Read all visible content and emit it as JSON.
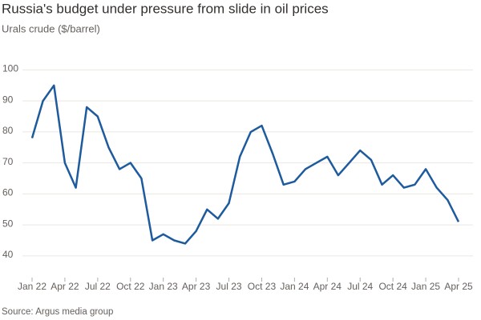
{
  "chart_data": {
    "type": "line",
    "title": "Russia's budget under pressure from slide in oil prices",
    "subtitle": "Urals crude ($/barrel)",
    "source": "Source: Argus media group",
    "x": [
      "2022-01",
      "2022-02",
      "2022-03",
      "2022-04",
      "2022-05",
      "2022-06",
      "2022-07",
      "2022-08",
      "2022-09",
      "2022-10",
      "2022-11",
      "2022-12",
      "2023-01",
      "2023-02",
      "2023-03",
      "2023-04",
      "2023-05",
      "2023-06",
      "2023-07",
      "2023-08",
      "2023-09",
      "2023-10",
      "2023-11",
      "2023-12",
      "2024-01",
      "2024-02",
      "2024-03",
      "2024-04",
      "2024-05",
      "2024-06",
      "2024-07",
      "2024-08",
      "2024-09",
      "2024-10",
      "2024-11",
      "2024-12",
      "2025-01",
      "2025-02",
      "2025-03",
      "2025-04"
    ],
    "series": [
      {
        "name": "Urals crude",
        "color": "#1d5b9e",
        "values": [
          78,
          90,
          95,
          70,
          62,
          88,
          85,
          75,
          68,
          70,
          65,
          45,
          47,
          45,
          44,
          48,
          55,
          52,
          57,
          72,
          80,
          82,
          73,
          63,
          64,
          68,
          70,
          72,
          66,
          70,
          74,
          71,
          63,
          66,
          62,
          63,
          68,
          62,
          58,
          51
        ]
      }
    ],
    "ylim": [
      33,
      105
    ],
    "yticks": [
      40,
      50,
      60,
      70,
      80,
      90,
      100
    ],
    "xticks": [
      {
        "value": "2022-01",
        "label": "Jan 22"
      },
      {
        "value": "2022-04",
        "label": "Apr 22"
      },
      {
        "value": "2022-07",
        "label": "Jul 22"
      },
      {
        "value": "2022-10",
        "label": "Oct 22"
      },
      {
        "value": "2023-01",
        "label": "Jan 23"
      },
      {
        "value": "2023-04",
        "label": "Apr 23"
      },
      {
        "value": "2023-07",
        "label": "Jul 23"
      },
      {
        "value": "2023-10",
        "label": "Oct 23"
      },
      {
        "value": "2024-01",
        "label": "Jan 24"
      },
      {
        "value": "2024-04",
        "label": "Apr 24"
      },
      {
        "value": "2024-07",
        "label": "Jul 24"
      },
      {
        "value": "2024-10",
        "label": "Oct 24"
      },
      {
        "value": "2025-01",
        "label": "Jan 25"
      },
      {
        "value": "2025-04",
        "label": "Apr 25"
      }
    ],
    "grid": true
  }
}
